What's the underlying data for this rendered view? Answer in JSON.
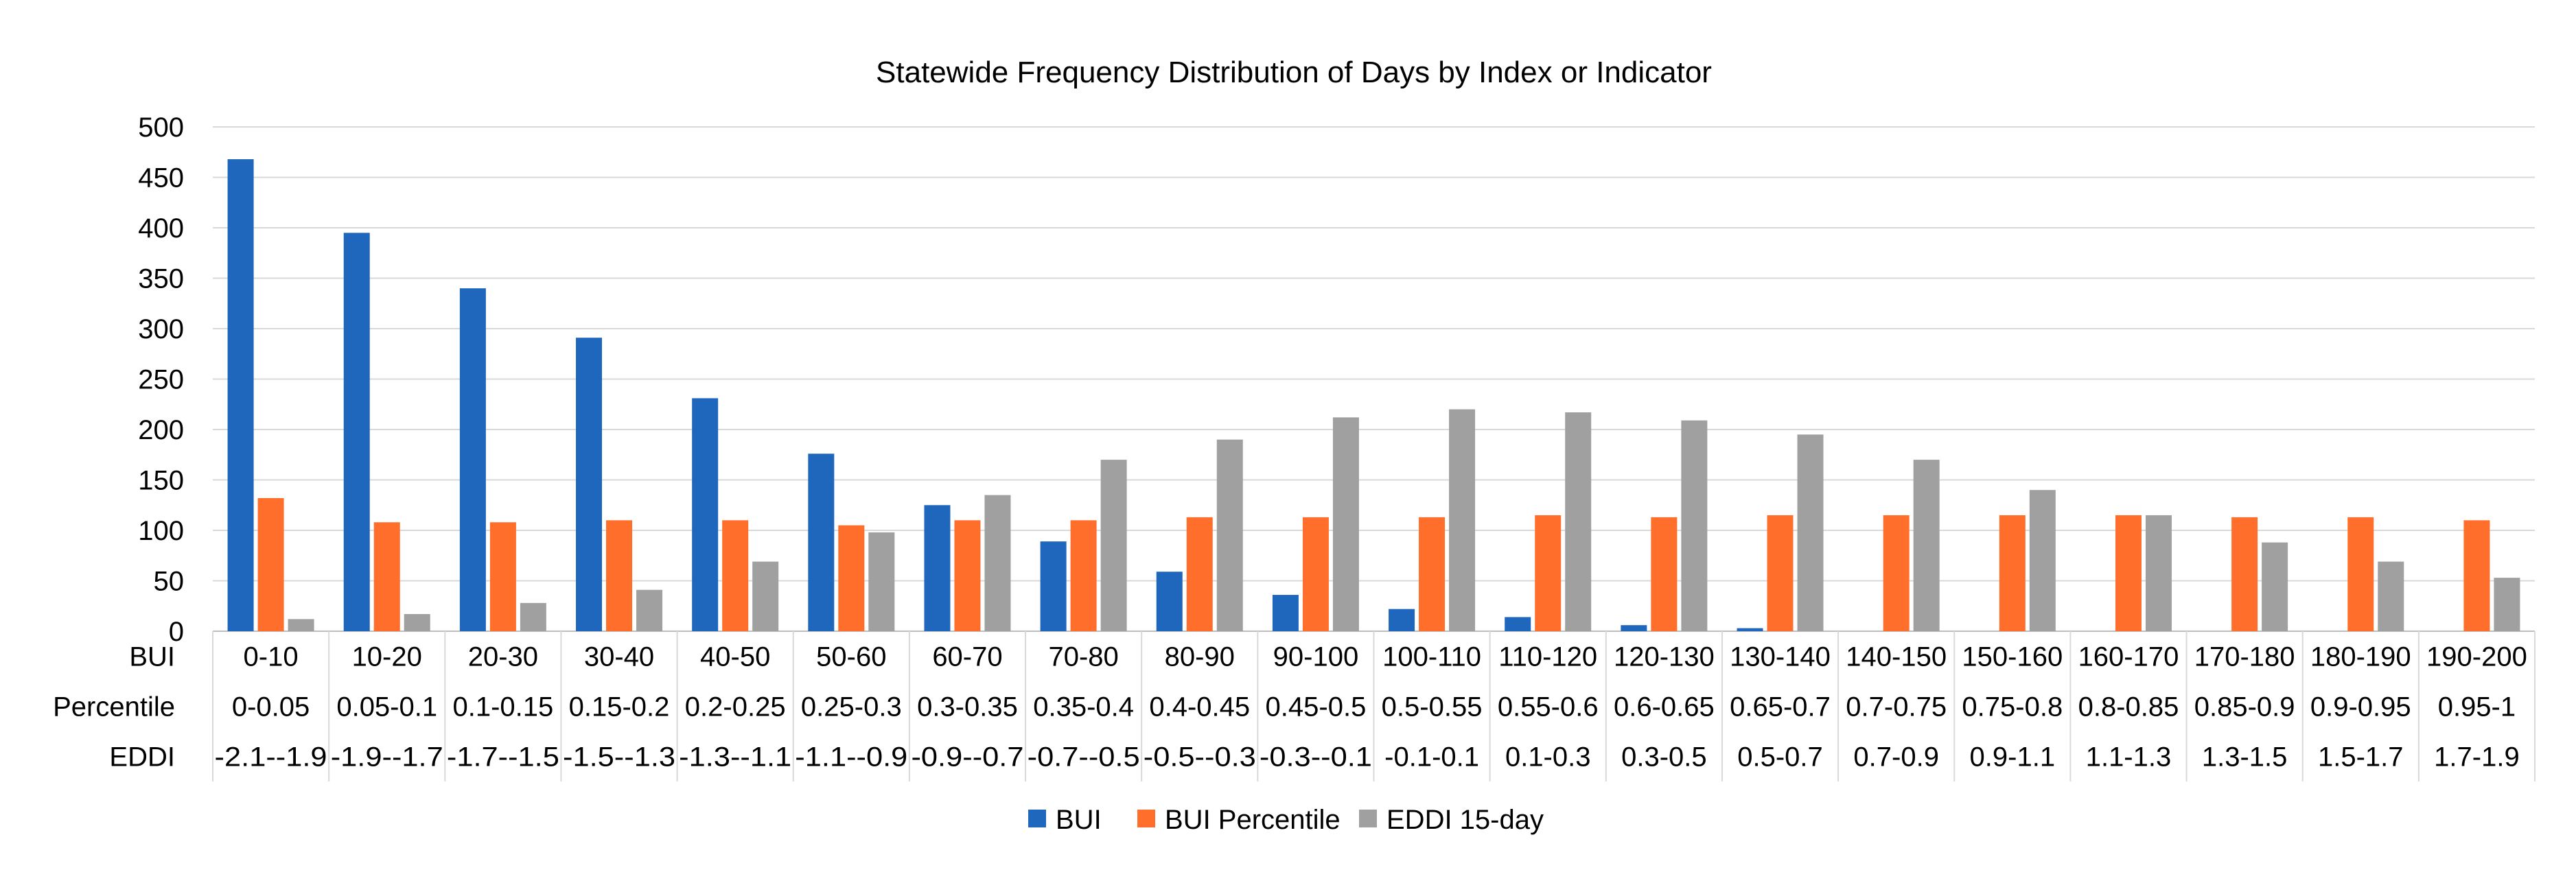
{
  "chart_data": {
    "type": "bar",
    "title": "Statewide Frequency Distribution of Days by Index or Indicator",
    "ylim": [
      0,
      500
    ],
    "yticks": [
      0,
      50,
      100,
      150,
      200,
      250,
      300,
      350,
      400,
      450,
      500
    ],
    "grid": true,
    "legend_position": "bottom",
    "category_rows": [
      {
        "label": "BUI",
        "labels": [
          "0-10",
          "10-20",
          "20-30",
          "30-40",
          "40-50",
          "50-60",
          "60-70",
          "70-80",
          "80-90",
          "90-100",
          "100-110",
          "110-120",
          "120-130",
          "130-140",
          "140-150",
          "150-160",
          "160-170",
          "170-180",
          "180-190",
          "190-200"
        ]
      },
      {
        "label": "Percentile",
        "labels": [
          "0-0.05",
          "0.05-0.1",
          "0.1-0.15",
          "0.15-0.2",
          "0.2-0.25",
          "0.25-0.3",
          "0.3-0.35",
          "0.35-0.4",
          "0.4-0.45",
          "0.45-0.5",
          "0.5-0.55",
          "0.55-0.6",
          "0.6-0.65",
          "0.65-0.7",
          "0.7-0.75",
          "0.75-0.8",
          "0.8-0.85",
          "0.85-0.9",
          "0.9-0.95",
          "0.95-1"
        ]
      },
      {
        "label": "EDDI",
        "labels": [
          "-2.1--1.9",
          "-1.9--1.7",
          "-1.7--1.5",
          "-1.5--1.3",
          "-1.3--1.1",
          "-1.1--0.9",
          "-0.9--0.7",
          "-0.7--0.5",
          "-0.5--0.3",
          "-0.3--0.1",
          "-0.1-0.1",
          "0.1-0.3",
          "0.3-0.5",
          "0.5-0.7",
          "0.7-0.9",
          "0.9-1.1",
          "1.1-1.3",
          "1.3-1.5",
          "1.5-1.7",
          "1.7-1.9"
        ]
      }
    ],
    "series": [
      {
        "name": "BUI",
        "color": "#1f66bd",
        "values": [
          468,
          395,
          340,
          291,
          231,
          176,
          125,
          89,
          59,
          36,
          22,
          14,
          6,
          3,
          0,
          0,
          0,
          0,
          0,
          0
        ]
      },
      {
        "name": "BUI Percentile",
        "color": "#ff6e2a",
        "values": [
          132,
          108,
          108,
          110,
          110,
          105,
          110,
          110,
          113,
          113,
          113,
          115,
          113,
          115,
          115,
          115,
          115,
          113,
          113,
          110
        ]
      },
      {
        "name": "EDDI 15-day",
        "color": "#a0a0a0",
        "values": [
          12,
          17,
          28,
          41,
          69,
          98,
          135,
          170,
          190,
          212,
          220,
          217,
          209,
          195,
          170,
          140,
          115,
          88,
          69,
          53
        ]
      }
    ]
  }
}
